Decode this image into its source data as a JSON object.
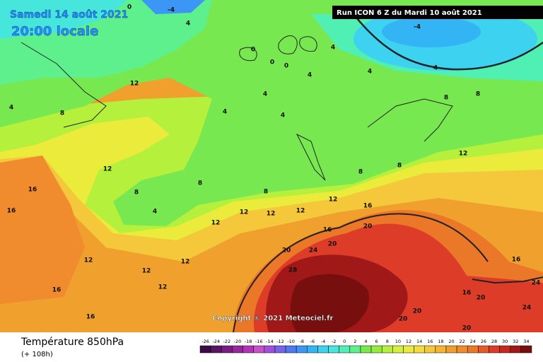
{
  "header": {
    "date": "Samedi 14 août 2021",
    "time": "20:00 locale",
    "run": "Run ICON 6 Z du Mardi 10 août 2021"
  },
  "copyright": "Copyright © 2021 Meteociel.fr",
  "footer": {
    "title": "Température 850hPa",
    "lead": "(+ 108h)"
  },
  "legend": {
    "ticks": [
      -26,
      -24,
      -22,
      -20,
      -18,
      -16,
      -14,
      -12,
      -10,
      -8,
      -6,
      -4,
      -2,
      0,
      2,
      4,
      6,
      8,
      10,
      12,
      14,
      16,
      18,
      20,
      22,
      24,
      26,
      28,
      30,
      32,
      34
    ],
    "colors": [
      "#3c0a46",
      "#5a1464",
      "#781e82",
      "#96289b",
      "#b432b4",
      "#c850c8",
      "#a050dc",
      "#7864e6",
      "#5078f0",
      "#3c96f5",
      "#32b4f5",
      "#3cd2f0",
      "#46e6dc",
      "#50f0b4",
      "#5ef08c",
      "#78e850",
      "#96ec3c",
      "#b4f03c",
      "#d2f03c",
      "#ebeb3c",
      "#f5dc3c",
      "#f5c83c",
      "#f5b432",
      "#f0a02d",
      "#f08c2d",
      "#eb7828",
      "#e65a28",
      "#dc3c28",
      "#c82820",
      "#a01818",
      "#780f0f"
    ]
  },
  "contour_labels": [
    0,
    -4,
    4,
    0,
    0,
    0,
    -4,
    4,
    4,
    4,
    4,
    4,
    4,
    4,
    12,
    12,
    16,
    16,
    8,
    4,
    8,
    8,
    12,
    12,
    12,
    12,
    16,
    16,
    20,
    20,
    24,
    20,
    28,
    12,
    12,
    12,
    12,
    12,
    16,
    16,
    16,
    20,
    20,
    20,
    20,
    16,
    24,
    24,
    8,
    8,
    12,
    8,
    8,
    4,
    8
  ]
}
